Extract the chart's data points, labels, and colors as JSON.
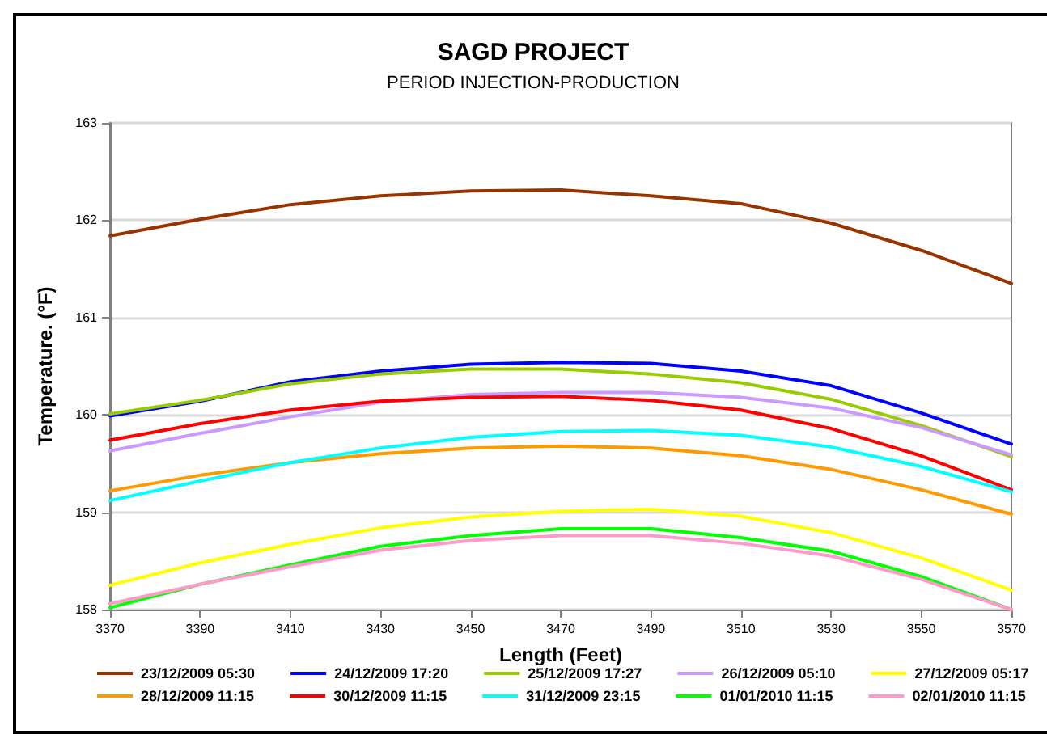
{
  "chart_data": {
    "type": "line",
    "title": "SAGD PROJECT",
    "subtitle": "PERIOD INJECTION-PRODUCTION",
    "xlabel": "Length (Feet)",
    "ylabel": "Temperature. (°F)",
    "x": [
      3370,
      3390,
      3410,
      3430,
      3450,
      3470,
      3490,
      3510,
      3530,
      3550,
      3570
    ],
    "xlim": [
      3370,
      3570
    ],
    "xticks": [
      3370,
      3390,
      3410,
      3430,
      3450,
      3470,
      3490,
      3510,
      3530,
      3550,
      3570
    ],
    "ylim": [
      158,
      163
    ],
    "yticks": [
      158,
      159,
      160,
      161,
      162,
      163
    ],
    "grid": "y",
    "legend": "bottom",
    "marker": "none",
    "line_style": "solid",
    "series": [
      {
        "name": "23/12/2009 05:30",
        "color": "#993300",
        "values": [
          161.84,
          162.01,
          162.16,
          162.25,
          162.3,
          162.31,
          162.25,
          162.17,
          161.97,
          161.69,
          161.35
        ]
      },
      {
        "name": "24/12/2009 17:20",
        "color": "#0000ff",
        "values": [
          159.99,
          160.14,
          160.34,
          160.45,
          160.52,
          160.54,
          160.53,
          160.45,
          160.3,
          160.02,
          159.7
        ]
      },
      {
        "name": "25/12/2009 17:27",
        "color": "#99cc00",
        "values": [
          160.01,
          160.15,
          160.32,
          160.42,
          160.47,
          160.47,
          160.42,
          160.33,
          160.16,
          159.89,
          159.57
        ]
      },
      {
        "name": "26/12/2009 05:10",
        "color": "#cc99ff",
        "values": [
          159.63,
          159.81,
          159.98,
          160.13,
          160.21,
          160.23,
          160.23,
          160.18,
          160.07,
          159.87,
          159.59
        ]
      },
      {
        "name": "27/12/2009 05:17",
        "color": "#ffff00",
        "values": [
          158.25,
          158.48,
          158.67,
          158.84,
          158.95,
          159.01,
          159.03,
          158.96,
          158.79,
          158.53,
          158.2
        ]
      },
      {
        "name": "28/12/2009 11:15",
        "color": "#ff9900",
        "values": [
          159.22,
          159.38,
          159.51,
          159.6,
          159.66,
          159.68,
          159.66,
          159.58,
          159.44,
          159.23,
          158.98
        ]
      },
      {
        "name": "30/12/2009 11:15",
        "color": "#ff0000",
        "values": [
          159.74,
          159.91,
          160.05,
          160.14,
          160.18,
          160.19,
          160.15,
          160.05,
          159.86,
          159.58,
          159.23
        ]
      },
      {
        "name": "31/12/2009 23:15",
        "color": "#00ffff",
        "values": [
          159.12,
          159.32,
          159.51,
          159.66,
          159.77,
          159.83,
          159.84,
          159.79,
          159.67,
          159.47,
          159.21
        ]
      },
      {
        "name": "01/01/2010 11:15",
        "color": "#00ff00",
        "values": [
          158.02,
          158.26,
          158.46,
          158.65,
          158.76,
          158.83,
          158.83,
          158.74,
          158.6,
          158.34,
          158.0
        ]
      },
      {
        "name": "02/01/2010 11:15",
        "color": "#ff99cc",
        "values": [
          158.06,
          158.26,
          158.44,
          158.61,
          158.71,
          158.76,
          158.76,
          158.68,
          158.55,
          158.31,
          158.0
        ]
      }
    ]
  }
}
